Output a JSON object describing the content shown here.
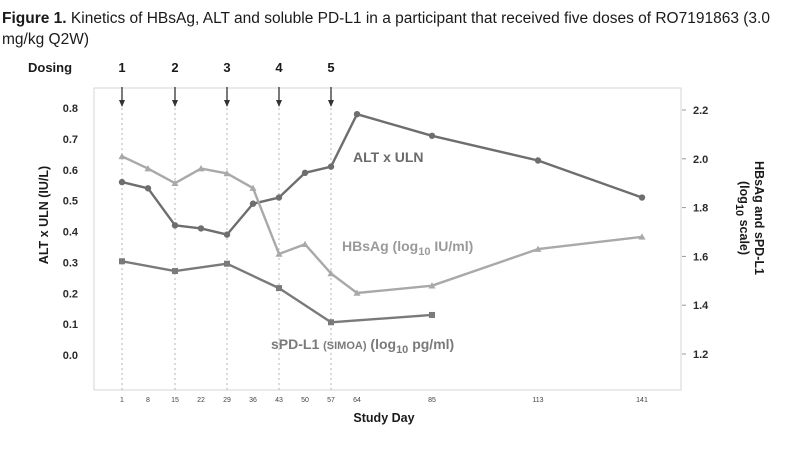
{
  "caption": {
    "lead": "Figure 1.",
    "text": " Kinetics of HBsAg, ALT and soluble PD-L1 in a participant that received five doses of RO7191863 (3.0 mg/kg Q2W)"
  },
  "colors": {
    "alt": "#6e6e6e",
    "hbsag": "#a9a9a9",
    "sdpl1": "#7a7a7a",
    "dose_line": "#b5b5b5",
    "frame": "#d4d4d4"
  },
  "chart_data": {
    "type": "line",
    "title": "",
    "dosing_label": "Dosing",
    "dosing": [
      {
        "label": "1",
        "day": 1
      },
      {
        "label": "2",
        "day": 15
      },
      {
        "label": "3",
        "day": 29
      },
      {
        "label": "4",
        "day": 43
      },
      {
        "label": "5",
        "day": 57
      }
    ],
    "x_ticks": [
      1,
      8,
      15,
      22,
      29,
      36,
      43,
      50,
      57,
      64,
      85,
      113,
      141
    ],
    "xlabel": "Study Day",
    "ylabel_left": "ALT x ULN (IU/L)",
    "ylabel_right": "HBsAg and sPD-L1",
    "ylabel_right2": "(log10 scale)",
    "ylim_left": [
      0.0,
      0.8
    ],
    "ylim_right": [
      1.2,
      2.2
    ],
    "y_ticks_left": [
      "0.8",
      "0.7",
      "0.6",
      "0.5",
      "0.4",
      "0.3",
      "0.2",
      "0.1",
      "0.0"
    ],
    "y_ticks_right": [
      "2.2",
      "2.0",
      "1.8",
      "1.6",
      "1.4",
      "1.2"
    ],
    "series": [
      {
        "name": "ALT x ULN",
        "axis": "left",
        "marker": "circle",
        "x": [
          1,
          8,
          15,
          22,
          29,
          36,
          43,
          50,
          57,
          64,
          85,
          113,
          141
        ],
        "y": [
          0.56,
          0.54,
          0.42,
          0.41,
          0.39,
          0.49,
          0.51,
          0.59,
          0.61,
          0.78,
          0.71,
          0.63,
          0.51
        ]
      },
      {
        "name": "HBsAg",
        "axis": "right",
        "marker": "triangle",
        "x": [
          1,
          8,
          15,
          22,
          29,
          36,
          43,
          50,
          57,
          64,
          85,
          113,
          141
        ],
        "y": [
          2.01,
          1.96,
          1.9,
          1.96,
          1.94,
          1.88,
          1.61,
          1.65,
          1.53,
          1.45,
          1.48,
          1.63,
          1.68
        ]
      },
      {
        "name": "sPD-L1",
        "axis": "right",
        "marker": "square",
        "x": [
          1,
          15,
          29,
          43,
          57,
          85
        ],
        "y": [
          1.58,
          1.54,
          1.57,
          1.47,
          1.33,
          1.36
        ]
      }
    ],
    "annotations": {
      "alt": "ALT x ULN",
      "hbsag_main": "HBsAg (log",
      "hbsag_sub": "10",
      "hbsag_tail": " IU/ml)",
      "spdl1_main": "sPD-L1 ",
      "spdl1_small": "(SIMOA)",
      "spdl1_mid": " (log",
      "spdl1_sub": "10",
      "spdl1_tail": " pg/ml)"
    }
  }
}
